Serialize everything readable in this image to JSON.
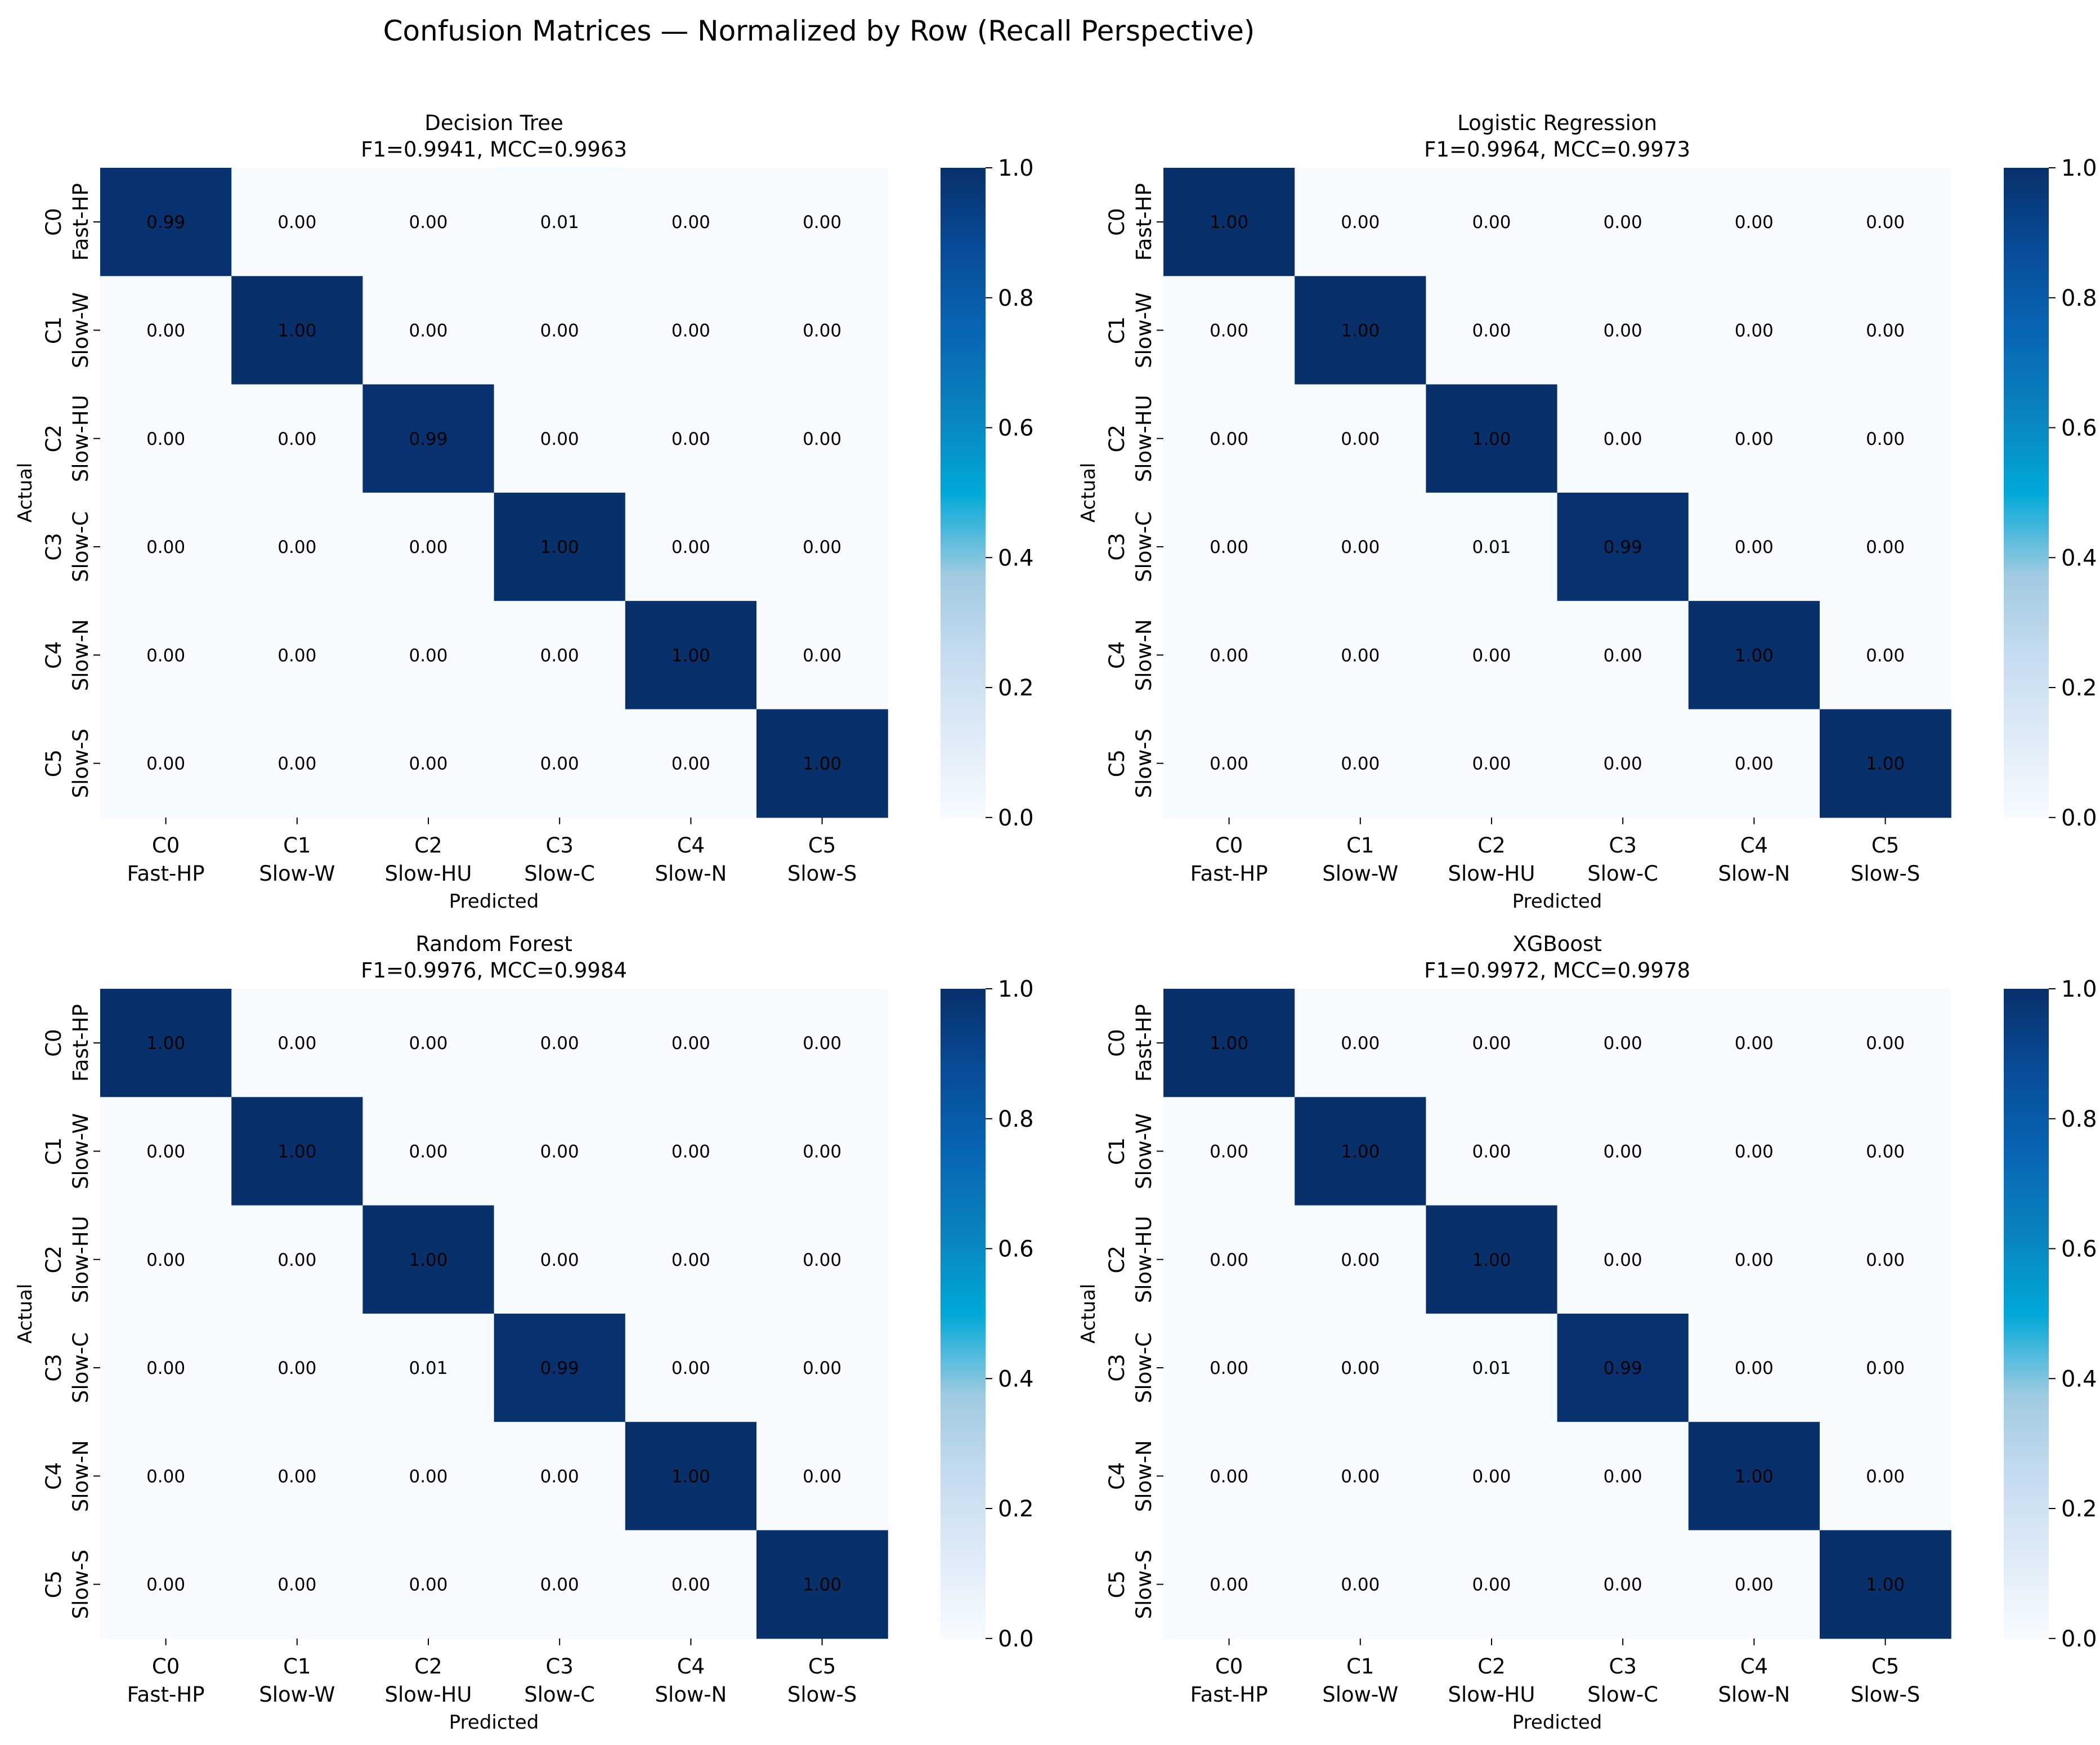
{
  "chart_data": {
    "type": "heatmap",
    "title": "Confusion Matrices — Normalized by Row (Recall Perspective)",
    "classes": [
      [
        "C0",
        "Fast-HP"
      ],
      [
        "C1",
        "Slow-W"
      ],
      [
        "C2",
        "Slow-HU"
      ],
      [
        "C3",
        "Slow-C"
      ],
      [
        "C4",
        "Slow-N"
      ],
      [
        "C5",
        "Slow-S"
      ]
    ],
    "xlabel": "Predicted",
    "ylabel": "Actual",
    "value_format": "2 decimals",
    "colormap": "Blues",
    "colorbar": {
      "range": [
        0,
        1
      ],
      "ticks": [
        0.0,
        0.2,
        0.4,
        0.6,
        0.8,
        1.0
      ],
      "tick_labels": [
        "0.0",
        "0.2",
        "0.4",
        "0.6",
        "0.8",
        "1.0"
      ]
    },
    "panels": [
      {
        "title": "Decision Tree",
        "subtitle": "F1=0.9941, MCC=0.9963",
        "matrix": [
          [
            0.99,
            0.0,
            0.0,
            0.01,
            0.0,
            0.0
          ],
          [
            0.0,
            1.0,
            0.0,
            0.0,
            0.0,
            0.0
          ],
          [
            0.0,
            0.0,
            0.99,
            0.0,
            0.0,
            0.0
          ],
          [
            0.0,
            0.0,
            0.0,
            1.0,
            0.0,
            0.0
          ],
          [
            0.0,
            0.0,
            0.0,
            0.0,
            1.0,
            0.0
          ],
          [
            0.0,
            0.0,
            0.0,
            0.0,
            0.0,
            1.0
          ]
        ]
      },
      {
        "title": "Logistic Regression",
        "subtitle": "F1=0.9964, MCC=0.9973",
        "matrix": [
          [
            1.0,
            0.0,
            0.0,
            0.0,
            0.0,
            0.0
          ],
          [
            0.0,
            1.0,
            0.0,
            0.0,
            0.0,
            0.0
          ],
          [
            0.0,
            0.0,
            1.0,
            0.0,
            0.0,
            0.0
          ],
          [
            0.0,
            0.0,
            0.01,
            0.99,
            0.0,
            0.0
          ],
          [
            0.0,
            0.0,
            0.0,
            0.0,
            1.0,
            0.0
          ],
          [
            0.0,
            0.0,
            0.0,
            0.0,
            0.0,
            1.0
          ]
        ]
      },
      {
        "title": "Random Forest",
        "subtitle": "F1=0.9976, MCC=0.9984",
        "matrix": [
          [
            1.0,
            0.0,
            0.0,
            0.0,
            0.0,
            0.0
          ],
          [
            0.0,
            1.0,
            0.0,
            0.0,
            0.0,
            0.0
          ],
          [
            0.0,
            0.0,
            1.0,
            0.0,
            0.0,
            0.0
          ],
          [
            0.0,
            0.0,
            0.01,
            0.99,
            0.0,
            0.0
          ],
          [
            0.0,
            0.0,
            0.0,
            0.0,
            1.0,
            0.0
          ],
          [
            0.0,
            0.0,
            0.0,
            0.0,
            0.0,
            1.0
          ]
        ]
      },
      {
        "title": "XGBoost",
        "subtitle": "F1=0.9972, MCC=0.9978",
        "matrix": [
          [
            1.0,
            0.0,
            0.0,
            0.0,
            0.0,
            0.0
          ],
          [
            0.0,
            1.0,
            0.0,
            0.0,
            0.0,
            0.0
          ],
          [
            0.0,
            0.0,
            1.0,
            0.0,
            0.0,
            0.0
          ],
          [
            0.0,
            0.0,
            0.01,
            0.99,
            0.0,
            0.0
          ],
          [
            0.0,
            0.0,
            0.0,
            0.0,
            1.0,
            0.0
          ],
          [
            0.0,
            0.0,
            0.0,
            0.0,
            0.0,
            1.0
          ]
        ]
      }
    ]
  }
}
